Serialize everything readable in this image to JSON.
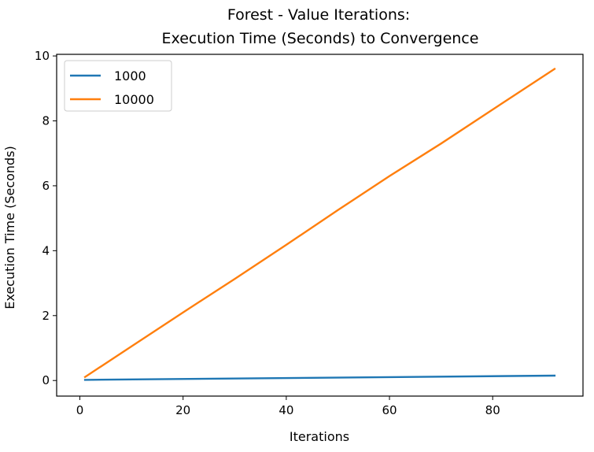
{
  "chart_data": {
    "type": "line",
    "title": [
      "Forest - Value Iterations:",
      "Execution Time (Seconds) to Convergence"
    ],
    "xlabel": "Iterations",
    "ylabel": "Execution Time (Seconds)",
    "xlim": [
      -4.5,
      97.5
    ],
    "ylim": [
      -0.48,
      10.05
    ],
    "xticks": [
      0,
      20,
      40,
      60,
      80
    ],
    "yticks": [
      0,
      2,
      4,
      6,
      8,
      10
    ],
    "grid": false,
    "legend": {
      "placement": "top-left"
    },
    "series": [
      {
        "name": "1000",
        "color": "#1f77b4",
        "x": [
          1,
          92
        ],
        "y": [
          0.02,
          0.15
        ]
      },
      {
        "name": "10000",
        "color": "#ff7f0e",
        "x": [
          1,
          10,
          20,
          30,
          40,
          50,
          60,
          70,
          80,
          92
        ],
        "y": [
          0.11,
          1.05,
          2.1,
          3.13,
          4.18,
          5.25,
          6.3,
          7.3,
          8.35,
          9.6
        ]
      }
    ]
  }
}
